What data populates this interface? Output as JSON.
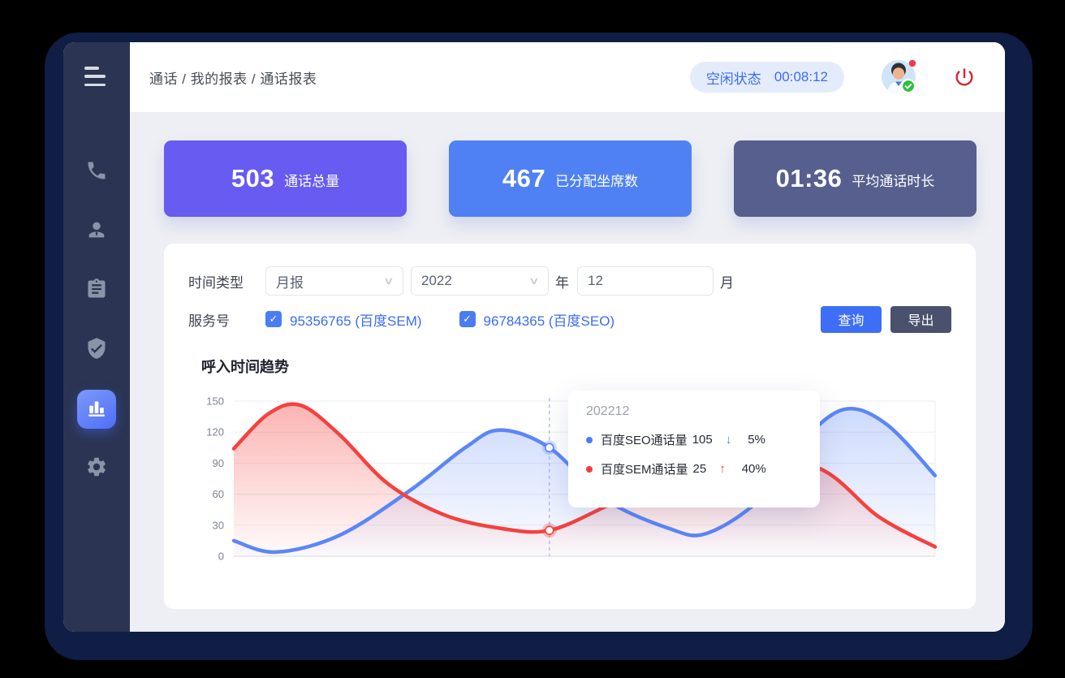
{
  "topbar": {
    "breadcrumb": "通话 / 我的报表 / 通话报表",
    "status": {
      "label": "空闲状态",
      "time": "00:08:12"
    }
  },
  "sidebar": {
    "icons": [
      {
        "name": "menu-icon"
      },
      {
        "name": "phone-icon"
      },
      {
        "name": "agent-icon"
      },
      {
        "name": "report-icon"
      },
      {
        "name": "shield-check-icon"
      },
      {
        "name": "bar-chart-icon",
        "active": true
      },
      {
        "name": "gear-icon"
      }
    ]
  },
  "stat_cards": [
    {
      "value": "503",
      "label": "通话总量",
      "color": "#675BF1"
    },
    {
      "value": "467",
      "label": "已分配坐席数",
      "color": "#4F81F5"
    },
    {
      "value": "01:36",
      "label": "平均通话时长",
      "color": "#565F8E"
    }
  ],
  "filters": {
    "time_type_label": "时间类型",
    "time_type_value": "月报",
    "year_value": "2022",
    "year_unit": "年",
    "month_value": "12",
    "month_unit": "月",
    "service_label": "服务号",
    "services": [
      {
        "label": "95356765 (百度SEM)",
        "checked": true
      },
      {
        "label": "96784365 (百度SEO)",
        "checked": true
      }
    ],
    "query_button": "查询",
    "export_button": "导出"
  },
  "chart_data": {
    "type": "line",
    "title": "呼入时间趋势",
    "ylim": [
      0,
      150
    ],
    "yticks": [
      0,
      30,
      60,
      90,
      120,
      150
    ],
    "grid": true,
    "highlight_x": 0.45,
    "series": [
      {
        "name": "百度SEO通话量",
        "color": "#5B86F7",
        "points": [
          [
            0,
            15
          ],
          [
            0.06,
            4
          ],
          [
            0.15,
            20
          ],
          [
            0.25,
            63
          ],
          [
            0.33,
            105
          ],
          [
            0.38,
            122
          ],
          [
            0.45,
            105
          ],
          [
            0.53,
            55
          ],
          [
            0.62,
            27
          ],
          [
            0.674,
            22
          ],
          [
            0.75,
            55
          ],
          [
            0.81,
            110
          ],
          [
            0.87,
            142
          ],
          [
            0.93,
            128
          ],
          [
            1,
            78
          ]
        ]
      },
      {
        "name": "百度SEM通话量",
        "color": "#F5413E",
        "points": [
          [
            0,
            104
          ],
          [
            0.05,
            138
          ],
          [
            0.095,
            146
          ],
          [
            0.15,
            118
          ],
          [
            0.22,
            70
          ],
          [
            0.3,
            40
          ],
          [
            0.38,
            27
          ],
          [
            0.45,
            25
          ],
          [
            0.53,
            48
          ],
          [
            0.62,
            78
          ],
          [
            0.72,
            98
          ],
          [
            0.835,
            85
          ],
          [
            0.92,
            38
          ],
          [
            1,
            9
          ]
        ]
      }
    ],
    "tooltip": {
      "title": "202212",
      "rows": [
        {
          "label": "百度SEO通话量",
          "value": "105",
          "arrow": "↓",
          "direction": "down",
          "change": "5%"
        },
        {
          "label": "百度SEM通话量",
          "value": "25",
          "arrow": "↑",
          "direction": "up",
          "change": "40%"
        }
      ]
    }
  },
  "colors": {
    "accent_blue": "#3E6EF5",
    "sidebar_bg": "#2B3452",
    "frame_bg": "#101D44",
    "status_pill_bg": "#E4ECFC",
    "status_pill_text": "#3D6CF0",
    "power_icon": "#D9232E"
  }
}
